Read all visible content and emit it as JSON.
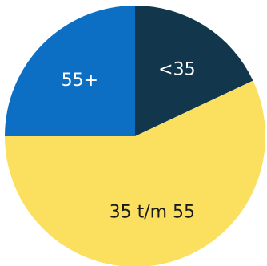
{
  "chart_data": {
    "type": "pie",
    "title": "",
    "slices": [
      {
        "label": "<35",
        "value": 18,
        "color": "#12374d",
        "label_color": "#ffffff"
      },
      {
        "label": "35 t/m 55",
        "value": 57,
        "color": "#fae05e",
        "label_color": "#1a1a1a"
      },
      {
        "label": "55+",
        "value": 25,
        "color": "#0c6fc4",
        "label_color": "#ffffff"
      }
    ],
    "start": "top",
    "direction": "clockwise"
  }
}
